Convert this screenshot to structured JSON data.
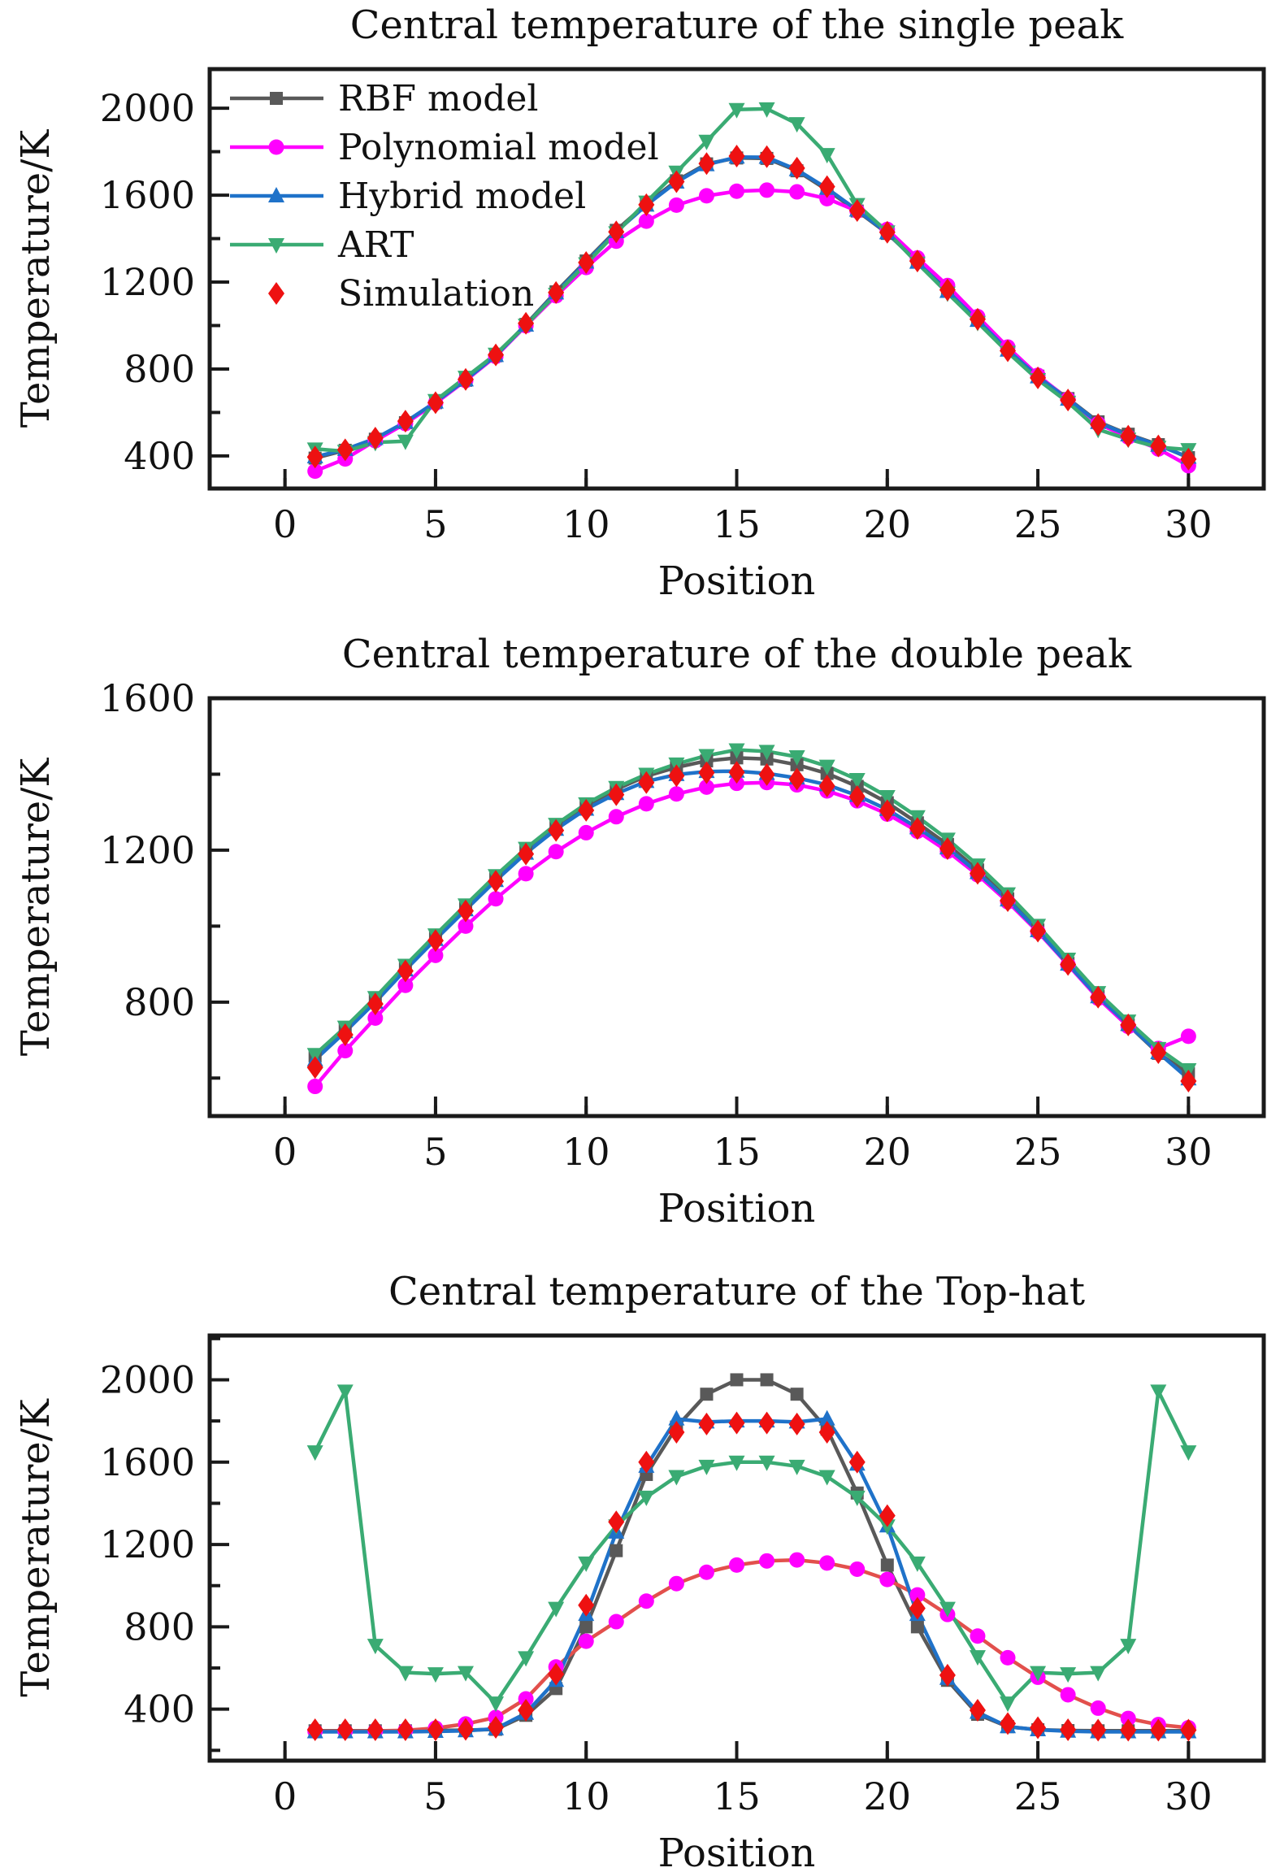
{
  "figure": {
    "ylabel": "Temperature/K",
    "xlabel": "Position",
    "axis_color": "#1a1a1a",
    "background": "#ffffff"
  },
  "chart_data": [
    {
      "type": "line",
      "title": "Central temperature of the single peak",
      "xlabel": "Position",
      "ylabel": "Temperature/K",
      "xlim": [
        -2.5,
        32.5
      ],
      "ylim": [
        250,
        2180
      ],
      "xticks": [
        0,
        5,
        10,
        15,
        20,
        25,
        30
      ],
      "yticks": [
        400,
        800,
        1200,
        1600,
        2000
      ],
      "grid": false,
      "legend": true,
      "legend_position": "upper-left",
      "x": [
        1,
        2,
        3,
        4,
        5,
        6,
        7,
        8,
        9,
        10,
        11,
        12,
        13,
        14,
        15,
        16,
        17,
        18,
        19,
        20,
        21,
        22,
        23,
        24,
        25,
        26,
        27,
        28,
        29,
        30
      ],
      "series": [
        {
          "name": "RBF model",
          "color": "#595959",
          "marker": "square",
          "line": true,
          "values": [
            390,
            426,
            477,
            553,
            645,
            748,
            861,
            1005,
            1155,
            1297,
            1438,
            1560,
            1666,
            1744,
            1771,
            1769,
            1712,
            1624,
            1527,
            1424,
            1294,
            1161,
            1027,
            889,
            767,
            664,
            557,
            500,
            452,
            392
          ]
        },
        {
          "name": "Polynomial model",
          "color": "#ff00ff",
          "marker": "circle",
          "line": true,
          "values": [
            330,
            386,
            470,
            549,
            643,
            747,
            858,
            999,
            1137,
            1267,
            1388,
            1480,
            1554,
            1597,
            1618,
            1623,
            1615,
            1584,
            1527,
            1442,
            1311,
            1184,
            1041,
            901,
            771,
            661,
            548,
            487,
            432,
            355
          ]
        },
        {
          "name": "Hybrid model",
          "color": "#1f72c9",
          "marker": "triangle-up",
          "line": true,
          "values": [
            396,
            430,
            480,
            556,
            648,
            750,
            862,
            1002,
            1150,
            1292,
            1432,
            1554,
            1660,
            1740,
            1775,
            1774,
            1717,
            1631,
            1531,
            1427,
            1291,
            1157,
            1024,
            887,
            764,
            661,
            554,
            497,
            449,
            394
          ]
        },
        {
          "name": "ART",
          "color": "#3aab73",
          "marker": "triangle-down",
          "line": true,
          "values": [
            432,
            421,
            462,
            468,
            655,
            762,
            868,
            1002,
            1144,
            1284,
            1427,
            1568,
            1706,
            1848,
            1994,
            1997,
            1929,
            1787,
            1557,
            1431,
            1287,
            1149,
            1014,
            877,
            751,
            647,
            522,
            477,
            440,
            429
          ]
        },
        {
          "name": "Simulation",
          "color": "#ee1111",
          "marker": "diamond",
          "line": false,
          "values": [
            395,
            428,
            482,
            560,
            645,
            752,
            865,
            1010,
            1152,
            1290,
            1431,
            1556,
            1662,
            1745,
            1780,
            1777,
            1724,
            1639,
            1529,
            1429,
            1297,
            1164,
            1029,
            884,
            759,
            657,
            544,
            491,
            446,
            385
          ]
        }
      ]
    },
    {
      "type": "line",
      "title": "Central temperature of the double peak",
      "xlabel": "Position",
      "ylabel": "Temperature/K",
      "xlim": [
        -2.5,
        32.5
      ],
      "ylim": [
        500,
        1600
      ],
      "xticks": [
        0,
        5,
        10,
        15,
        20,
        25,
        30
      ],
      "yticks": [
        800,
        1200,
        1600
      ],
      "grid": false,
      "legend": false,
      "x": [
        1,
        2,
        3,
        4,
        5,
        6,
        7,
        8,
        9,
        10,
        11,
        12,
        13,
        14,
        15,
        16,
        17,
        18,
        19,
        20,
        21,
        22,
        23,
        24,
        25,
        26,
        27,
        28,
        29,
        30
      ],
      "series": [
        {
          "name": "RBF model",
          "color": "#595959",
          "marker": "square",
          "line": true,
          "values": [
            658,
            730,
            808,
            893,
            973,
            1052,
            1130,
            1202,
            1265,
            1318,
            1360,
            1395,
            1418,
            1435,
            1443,
            1440,
            1425,
            1402,
            1368,
            1325,
            1272,
            1215,
            1148,
            1072,
            990,
            902,
            815,
            740,
            665,
            612
          ]
        },
        {
          "name": "Polynomial model",
          "color": "#ff00ff",
          "marker": "circle",
          "line": true,
          "values": [
            578,
            672,
            758,
            844,
            923,
            1000,
            1072,
            1138,
            1196,
            1246,
            1288,
            1322,
            1348,
            1366,
            1376,
            1378,
            1372,
            1356,
            1330,
            1295,
            1250,
            1197,
            1135,
            1064,
            985,
            898,
            810,
            736,
            678,
            710
          ]
        },
        {
          "name": "Hybrid model",
          "color": "#1f72c9",
          "marker": "triangle-up",
          "line": true,
          "values": [
            648,
            722,
            800,
            885,
            965,
            1043,
            1120,
            1192,
            1255,
            1308,
            1349,
            1381,
            1399,
            1407,
            1408,
            1402,
            1390,
            1372,
            1344,
            1307,
            1259,
            1206,
            1141,
            1069,
            988,
            900,
            814,
            741,
            667,
            598
          ]
        },
        {
          "name": "ART",
          "color": "#3aab73",
          "marker": "triangle-down",
          "line": true,
          "values": [
            662,
            734,
            812,
            897,
            977,
            1056,
            1133,
            1205,
            1268,
            1322,
            1365,
            1400,
            1427,
            1449,
            1464,
            1460,
            1446,
            1421,
            1386,
            1341,
            1288,
            1229,
            1161,
            1085,
            1002,
            913,
            825,
            750,
            678,
            622
          ]
        },
        {
          "name": "Simulation",
          "color": "#ee1111",
          "marker": "diamond",
          "line": false,
          "values": [
            628,
            714,
            795,
            882,
            962,
            1040,
            1118,
            1190,
            1252,
            1305,
            1346,
            1378,
            1396,
            1404,
            1405,
            1399,
            1387,
            1369,
            1341,
            1304,
            1257,
            1204,
            1139,
            1067,
            987,
            899,
            813,
            740,
            667,
            592
          ]
        }
      ]
    },
    {
      "type": "line",
      "title": "Central temperature of the Top-hat",
      "xlabel": "Position",
      "ylabel": "Temperature/K",
      "xlim": [
        -2.5,
        32.5
      ],
      "ylim": [
        150,
        2215
      ],
      "xticks": [
        0,
        5,
        10,
        15,
        20,
        25,
        30
      ],
      "yticks": [
        400,
        800,
        1200,
        1600,
        2000
      ],
      "grid": false,
      "legend": false,
      "x": [
        1,
        2,
        3,
        4,
        5,
        6,
        7,
        8,
        9,
        10,
        11,
        12,
        13,
        14,
        15,
        16,
        17,
        18,
        19,
        20,
        21,
        22,
        23,
        24,
        25,
        26,
        27,
        28,
        29,
        30
      ],
      "series": [
        {
          "name": "RBF model",
          "color": "#595959",
          "marker": "square",
          "line": true,
          "values": [
            295,
            295,
            295,
            295,
            296,
            298,
            302,
            370,
            500,
            800,
            1170,
            1540,
            1770,
            1930,
            2000,
            2000,
            1930,
            1760,
            1450,
            1100,
            800,
            540,
            375,
            315,
            300,
            296,
            295,
            295,
            295,
            295
          ]
        },
        {
          "name": "Polynomial model",
          "color": "#ff00ff",
          "line_color": "#e2504c",
          "marker": "circle",
          "line": true,
          "values": [
            293,
            293,
            294,
            297,
            308,
            328,
            360,
            450,
            605,
            730,
            825,
            925,
            1010,
            1065,
            1100,
            1120,
            1125,
            1110,
            1080,
            1030,
            955,
            860,
            755,
            650,
            555,
            470,
            405,
            355,
            325,
            310
          ]
        },
        {
          "name": "Hybrid model",
          "color": "#1f72c9",
          "marker": "triangle-up",
          "line": true,
          "values": [
            290,
            290,
            290,
            290,
            292,
            295,
            305,
            380,
            540,
            860,
            1260,
            1580,
            1810,
            1795,
            1800,
            1800,
            1795,
            1810,
            1590,
            1290,
            860,
            550,
            385,
            315,
            300,
            293,
            290,
            290,
            290,
            290
          ]
        },
        {
          "name": "ART",
          "color": "#3aab73",
          "marker": "triangle-down",
          "line": true,
          "values": [
            1650,
            1945,
            710,
            578,
            572,
            578,
            430,
            650,
            890,
            1110,
            1290,
            1430,
            1530,
            1580,
            1600,
            1600,
            1580,
            1530,
            1430,
            1290,
            1110,
            890,
            655,
            430,
            578,
            572,
            578,
            710,
            1945,
            1650
          ]
        },
        {
          "name": "Simulation",
          "color": "#ee1111",
          "marker": "diamond",
          "line": false,
          "values": [
            300,
            300,
            300,
            300,
            300,
            302,
            312,
            395,
            570,
            905,
            1310,
            1600,
            1745,
            1785,
            1790,
            1790,
            1785,
            1745,
            1600,
            1340,
            890,
            565,
            395,
            330,
            310,
            300,
            298,
            298,
            298,
            298
          ]
        }
      ]
    }
  ]
}
